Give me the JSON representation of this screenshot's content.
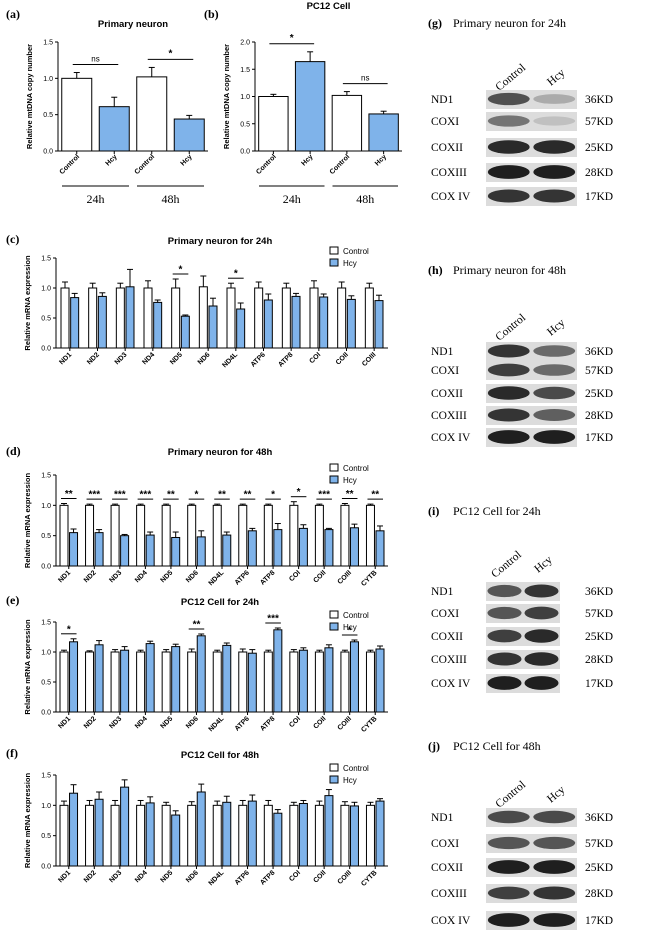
{
  "colors": {
    "control": "#ffffff",
    "hcy": "#7fb3ea",
    "stroke": "#000000"
  },
  "legend": {
    "control": "Control",
    "hcy": "Hcy"
  },
  "chart_data": [
    {
      "id": "a",
      "panel_label": "(a)",
      "type": "bar",
      "title": "Primary neuron",
      "ylabel": "Relative mtDNA copy number",
      "ylim": [
        0,
        1.5
      ],
      "yticks": [
        "0.0",
        "0.5",
        "1.0",
        "1.5"
      ],
      "categories": [
        "Control",
        "Hcy",
        "Control",
        "Hcy"
      ],
      "groups": [
        "24h",
        "48h"
      ],
      "values": [
        1.0,
        0.61,
        1.02,
        0.44
      ],
      "errors": [
        0.08,
        0.13,
        0.13,
        0.05
      ],
      "significance": [
        "ns",
        "*"
      ]
    },
    {
      "id": "b",
      "panel_label": "(b)",
      "type": "bar",
      "title": "PC12 Cell",
      "ylabel": "Relative mtDNA copy number",
      "ylim": [
        0,
        2.0
      ],
      "yticks": [
        "0.0",
        "0.5",
        "1.0",
        "1.5",
        "2.0"
      ],
      "categories": [
        "Control",
        "Hcy",
        "Control",
        "Hcy"
      ],
      "groups": [
        "24h",
        "48h"
      ],
      "values": [
        1.0,
        1.64,
        1.02,
        0.68
      ],
      "errors": [
        0.04,
        0.18,
        0.07,
        0.05
      ],
      "significance": [
        "*",
        "ns"
      ]
    },
    {
      "id": "c",
      "panel_label": "(c)",
      "type": "bar",
      "title": "Primary neuron for 24h",
      "ylabel": "Relative mRNA expression",
      "ylim": [
        0,
        1.5
      ],
      "yticks": [
        "0.0",
        "0.5",
        "1.0",
        "1.5"
      ],
      "categories": [
        "ND1",
        "ND2",
        "ND3",
        "ND4",
        "ND5",
        "ND6",
        "ND4L",
        "ATP6",
        "ATP8",
        "COI",
        "COII",
        "COIII"
      ],
      "series": [
        {
          "name": "Control",
          "values": [
            1.0,
            1.0,
            1.0,
            1.0,
            1.0,
            1.02,
            1.0,
            1.0,
            1.0,
            1.0,
            1.0,
            1.0
          ],
          "errors": [
            0.1,
            0.08,
            0.08,
            0.12,
            0.15,
            0.18,
            0.08,
            0.1,
            0.08,
            0.12,
            0.1,
            0.08
          ]
        },
        {
          "name": "Hcy",
          "values": [
            0.84,
            0.86,
            1.02,
            0.76,
            0.53,
            0.7,
            0.65,
            0.8,
            0.86,
            0.85,
            0.81,
            0.79
          ],
          "errors": [
            0.07,
            0.06,
            0.29,
            0.04,
            0.02,
            0.13,
            0.1,
            0.1,
            0.05,
            0.05,
            0.06,
            0.09
          ]
        }
      ],
      "significance": [
        "",
        "",
        "",
        "",
        "*",
        "",
        "*",
        "",
        "",
        "",
        "",
        ""
      ]
    },
    {
      "id": "d",
      "panel_label": "(d)",
      "type": "bar",
      "title": "Primary neuron for 48h",
      "ylabel": "Relative mRNA expression",
      "ylim": [
        0,
        1.5
      ],
      "yticks": [
        "0.0",
        "0.5",
        "1.0",
        "1.5"
      ],
      "categories": [
        "ND1",
        "ND2",
        "ND3",
        "ND4",
        "ND5",
        "ND6",
        "ND4L",
        "ATP6",
        "ATP8",
        "COI",
        "COII",
        "COIII",
        "CYTB"
      ],
      "series": [
        {
          "name": "Control",
          "values": [
            1.0,
            1.0,
            1.0,
            1.0,
            1.0,
            1.0,
            1.0,
            1.0,
            1.0,
            1.0,
            1.0,
            1.0,
            1.0
          ],
          "errors": [
            0.03,
            0.02,
            0.02,
            0.02,
            0.02,
            0.02,
            0.02,
            0.02,
            0.02,
            0.06,
            0.02,
            0.03,
            0.02
          ]
        },
        {
          "name": "Hcy",
          "values": [
            0.55,
            0.55,
            0.5,
            0.51,
            0.47,
            0.48,
            0.51,
            0.58,
            0.6,
            0.62,
            0.6,
            0.63,
            0.58
          ],
          "errors": [
            0.06,
            0.05,
            0.02,
            0.05,
            0.09,
            0.1,
            0.05,
            0.04,
            0.1,
            0.06,
            0.02,
            0.06,
            0.08
          ]
        }
      ],
      "significance": [
        "**",
        "***",
        "***",
        "***",
        "**",
        "*",
        "**",
        "**",
        "*",
        "*",
        "***",
        "**",
        "**"
      ]
    },
    {
      "id": "e",
      "panel_label": "(e)",
      "type": "bar",
      "title": "PC12 Cell for 24h",
      "ylabel": "Relative mRNA expression",
      "ylim": [
        0,
        1.5
      ],
      "yticks": [
        "0.0",
        "0.5",
        "1.0",
        "1.5"
      ],
      "categories": [
        "ND1",
        "ND2",
        "ND3",
        "ND4",
        "ND5",
        "ND6",
        "ND4L",
        "ATP6",
        "ATP8",
        "COI",
        "COII",
        "COIII",
        "CYTB"
      ],
      "series": [
        {
          "name": "Control",
          "values": [
            1.0,
            1.0,
            1.0,
            1.0,
            1.0,
            1.0,
            1.0,
            1.0,
            1.0,
            1.0,
            1.0,
            1.0,
            1.0
          ],
          "errors": [
            0.03,
            0.02,
            0.04,
            0.03,
            0.04,
            0.05,
            0.03,
            0.05,
            0.03,
            0.04,
            0.03,
            0.03,
            0.03
          ]
        },
        {
          "name": "Hcy",
          "values": [
            1.17,
            1.12,
            1.03,
            1.14,
            1.09,
            1.27,
            1.11,
            0.98,
            1.37,
            1.03,
            1.07,
            1.17,
            1.05
          ],
          "errors": [
            0.05,
            0.07,
            0.06,
            0.04,
            0.04,
            0.03,
            0.04,
            0.06,
            0.03,
            0.04,
            0.05,
            0.03,
            0.05
          ]
        }
      ],
      "significance": [
        "*",
        "",
        "",
        "",
        "",
        "**",
        "",
        "",
        "***",
        "",
        "",
        "*",
        ""
      ]
    },
    {
      "id": "f",
      "panel_label": "(f)",
      "type": "bar",
      "title": "PC12 Cell for 48h",
      "ylabel": "Relative mRNA expression",
      "ylim": [
        0,
        1.5
      ],
      "yticks": [
        "0.0",
        "0.5",
        "1.0",
        "1.5"
      ],
      "categories": [
        "ND1",
        "ND2",
        "ND3",
        "ND4",
        "ND5",
        "ND6",
        "ND4L",
        "ATP6",
        "ATP8",
        "COI",
        "COII",
        "COIII",
        "CYTB"
      ],
      "series": [
        {
          "name": "Control",
          "values": [
            1.0,
            1.0,
            1.0,
            1.0,
            1.0,
            1.0,
            1.0,
            1.0,
            1.0,
            1.0,
            1.0,
            1.0,
            1.0
          ],
          "errors": [
            0.07,
            0.08,
            0.08,
            0.08,
            0.05,
            0.06,
            0.07,
            0.08,
            0.08,
            0.05,
            0.07,
            0.06,
            0.05
          ]
        },
        {
          "name": "Hcy",
          "values": [
            1.2,
            1.1,
            1.3,
            1.04,
            0.84,
            1.22,
            1.05,
            1.07,
            0.87,
            1.03,
            1.16,
            0.99,
            1.07
          ],
          "errors": [
            0.14,
            0.12,
            0.12,
            0.1,
            0.07,
            0.13,
            0.1,
            0.1,
            0.06,
            0.05,
            0.1,
            0.06,
            0.04
          ]
        }
      ],
      "significance": [
        "",
        "",
        "",
        "",
        "",
        "",
        "",
        "",
        "",
        "",
        "",
        "",
        ""
      ]
    }
  ],
  "western_blots": [
    {
      "id": "g",
      "panel_label": "(g)",
      "title": "Primary neuron for 24h",
      "lanes": [
        "Control",
        "Hcy"
      ],
      "rows": [
        {
          "protein": "ND1",
          "size": "36KD",
          "intensity": [
            0.72,
            0.3
          ]
        },
        {
          "protein": "COXI",
          "size": "57KD",
          "intensity": [
            0.55,
            0.2
          ]
        },
        {
          "protein": "COXII",
          "size": "25KD",
          "intensity": [
            0.9,
            0.9
          ]
        },
        {
          "protein": "COXIII",
          "size": "28KD",
          "intensity": [
            0.95,
            0.95
          ]
        },
        {
          "protein": "COX IV",
          "size": "17KD",
          "intensity": [
            0.85,
            0.85
          ]
        }
      ]
    },
    {
      "id": "h",
      "panel_label": "(h)",
      "title": "Primary neuron for 48h",
      "lanes": [
        "Control",
        "Hcy"
      ],
      "rows": [
        {
          "protein": "ND1",
          "size": "36KD",
          "intensity": [
            0.85,
            0.6
          ]
        },
        {
          "protein": "COXI",
          "size": "57KD",
          "intensity": [
            0.8,
            0.6
          ]
        },
        {
          "protein": "COXII",
          "size": "25KD",
          "intensity": [
            0.9,
            0.75
          ]
        },
        {
          "protein": "COXIII",
          "size": "28KD",
          "intensity": [
            0.85,
            0.65
          ]
        },
        {
          "protein": "COX IV",
          "size": "17KD",
          "intensity": [
            0.95,
            0.95
          ]
        }
      ]
    },
    {
      "id": "i",
      "panel_label": "(i)",
      "title": "PC12 Cell for 24h",
      "lanes": [
        "Control",
        "Hcy"
      ],
      "rows": [
        {
          "protein": "ND1",
          "size": "36KD",
          "intensity": [
            0.7,
            0.85
          ]
        },
        {
          "protein": "COXI",
          "size": "57KD",
          "intensity": [
            0.7,
            0.8
          ]
        },
        {
          "protein": "COXII",
          "size": "25KD",
          "intensity": [
            0.8,
            0.9
          ]
        },
        {
          "protein": "COXIII",
          "size": "28KD",
          "intensity": [
            0.85,
            0.9
          ]
        },
        {
          "protein": "COX IV",
          "size": "17KD",
          "intensity": [
            0.95,
            0.95
          ]
        }
      ]
    },
    {
      "id": "j",
      "panel_label": "(j)",
      "title": "PC12 Cell for 48h",
      "lanes": [
        "Control",
        "Hcy"
      ],
      "rows": [
        {
          "protein": "ND1",
          "size": "36KD",
          "intensity": [
            0.75,
            0.75
          ]
        },
        {
          "protein": "COXI",
          "size": "57KD",
          "intensity": [
            0.7,
            0.7
          ]
        },
        {
          "protein": "COXII",
          "size": "25KD",
          "intensity": [
            0.95,
            0.95
          ]
        },
        {
          "protein": "COXIII",
          "size": "28KD",
          "intensity": [
            0.8,
            0.85
          ]
        },
        {
          "protein": "COX IV",
          "size": "17KD",
          "intensity": [
            0.95,
            0.95
          ]
        }
      ]
    }
  ]
}
